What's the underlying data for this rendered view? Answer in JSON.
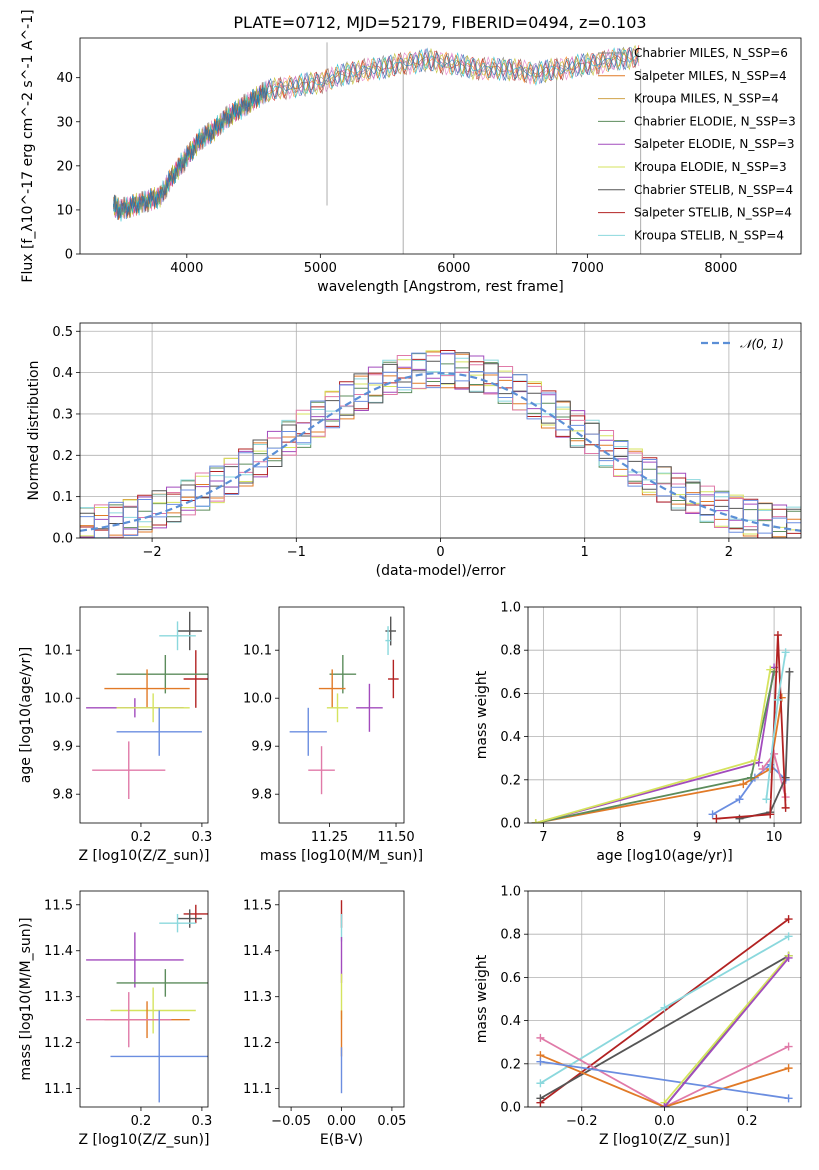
{
  "title": "PLATE=0712, MJD=52179, FIBERID=0494, z=0.103",
  "colors": [
    "#7f7f7f",
    "#ff7f0e",
    "#d62728",
    "#9467bd",
    "#e377c2",
    "#bcbd22",
    "#17becf",
    "#8c564b",
    "#1f77b4"
  ],
  "chart_data": [
    {
      "id": "spectrum",
      "type": "line",
      "xlabel": "wavelength [Angstrom, rest frame]",
      "ylabel": "Flux [f_λ10^-17 erg cm^-2 s^-1 A^-1]",
      "xlim": [
        3200,
        8600
      ],
      "ylim": [
        0,
        49
      ],
      "xticks": [
        4000,
        5000,
        6000,
        7000,
        8000
      ],
      "yticks": [
        0,
        10,
        20,
        30,
        40
      ],
      "x": [
        3450,
        3500,
        3600,
        3700,
        3800,
        3900,
        4000,
        4100,
        4200,
        4300,
        4400,
        4500,
        4600,
        4800,
        5000,
        5200,
        5400,
        5600,
        5800,
        6000,
        6200,
        6400,
        6600,
        6800,
        7000,
        7200,
        7400
      ],
      "y": [
        11,
        10,
        11,
        12,
        13,
        18,
        22,
        26,
        28,
        31,
        33,
        35,
        37,
        38,
        39,
        41,
        42,
        43,
        44,
        43,
        42,
        42,
        41,
        42,
        43,
        44,
        45
      ],
      "legend": [
        "Chabrier MILES, N_SSP=6",
        "Salpeter MILES, N_SSP=4",
        "Kroupa MILES, N_SSP=4",
        "Chabrier ELODIE, N_SSP=3",
        "Salpeter ELODIE, N_SSP=3",
        "Kroupa ELODIE, N_SSP=3",
        "Chabrier STELIB, N_SSP=4",
        "Salpeter STELIB, N_SSP=4",
        "Kroupa STELIB, N_SSP=4"
      ],
      "legend_loc": "top-right",
      "grid": false
    },
    {
      "id": "residuals",
      "type": "histogram",
      "xlabel": "(data-model)/error",
      "ylabel": "Normed distribution",
      "xlim": [
        -2.5,
        2.5
      ],
      "ylim": [
        0,
        0.52
      ],
      "xticks": [
        -2,
        -1,
        0,
        1,
        2
      ],
      "yticks": [
        0.0,
        0.1,
        0.2,
        0.3,
        0.4,
        0.5
      ],
      "bin_width": 0.1,
      "reference_label": "𝒩(0, 1)",
      "legend_loc": "top-right",
      "grid": true
    },
    {
      "id": "age_vs_Z",
      "type": "errorbar",
      "xlabel": "Z [log10(Z/Z_sun)]",
      "ylabel": "age [log10(age/yr)]",
      "xlim": [
        0.1,
        0.31
      ],
      "ylim": [
        9.74,
        10.19
      ],
      "xticks": [
        0.2,
        0.3
      ],
      "yticks": [
        9.8,
        9.9,
        10.0,
        10.1
      ],
      "points": [
        {
          "x": 0.28,
          "y": 10.14,
          "xerr": 0.02,
          "yerr": 0.04,
          "c": "#555555"
        },
        {
          "x": 0.26,
          "y": 10.13,
          "xerr": 0.03,
          "yerr": 0.03,
          "c": "#8bd8dd"
        },
        {
          "x": 0.29,
          "y": 10.04,
          "xerr": 0.02,
          "yerr": 0.06,
          "c": "#b22222"
        },
        {
          "x": 0.24,
          "y": 10.05,
          "xerr": 0.08,
          "yerr": 0.04,
          "c": "#5c8c5c"
        },
        {
          "x": 0.21,
          "y": 10.02,
          "xerr": 0.07,
          "yerr": 0.04,
          "c": "#e17a27"
        },
        {
          "x": 0.19,
          "y": 9.98,
          "xerr": 0.08,
          "yerr": 0.02,
          "c": "#a24bbd"
        },
        {
          "x": 0.22,
          "y": 9.98,
          "xerr": 0.06,
          "yerr": 0.03,
          "c": "#d5e35e"
        },
        {
          "x": 0.23,
          "y": 9.93,
          "xerr": 0.07,
          "yerr": 0.05,
          "c": "#6b8ee0"
        },
        {
          "x": 0.18,
          "y": 9.85,
          "xerr": 0.06,
          "yerr": 0.06,
          "c": "#e07aa8"
        }
      ]
    },
    {
      "id": "age_vs_mass",
      "type": "errorbar",
      "xlabel": "mass [log10(M/M_sun)]",
      "ylabel": "",
      "xlim": [
        11.06,
        11.53
      ],
      "ylim": [
        9.74,
        10.19
      ],
      "xticks": [
        11.25,
        11.5
      ],
      "yticks": [
        9.8,
        9.9,
        10.0,
        10.1
      ],
      "points": [
        {
          "x": 11.48,
          "y": 10.14,
          "xerr": 0.02,
          "yerr": 0.03,
          "c": "#555555"
        },
        {
          "x": 11.47,
          "y": 10.12,
          "xerr": 0.01,
          "yerr": 0.03,
          "c": "#8bd8dd"
        },
        {
          "x": 11.49,
          "y": 10.04,
          "xerr": 0.02,
          "yerr": 0.04,
          "c": "#b22222"
        },
        {
          "x": 11.3,
          "y": 10.05,
          "xerr": 0.05,
          "yerr": 0.04,
          "c": "#5c8c5c"
        },
        {
          "x": 11.26,
          "y": 10.02,
          "xerr": 0.05,
          "yerr": 0.04,
          "c": "#e17a27"
        },
        {
          "x": 11.4,
          "y": 9.98,
          "xerr": 0.05,
          "yerr": 0.05,
          "c": "#a24bbd"
        },
        {
          "x": 11.28,
          "y": 9.98,
          "xerr": 0.04,
          "yerr": 0.03,
          "c": "#d5e35e"
        },
        {
          "x": 11.17,
          "y": 9.93,
          "xerr": 0.07,
          "yerr": 0.05,
          "c": "#6b8ee0"
        },
        {
          "x": 11.22,
          "y": 9.85,
          "xerr": 0.05,
          "yerr": 0.05,
          "c": "#e07aa8"
        }
      ]
    },
    {
      "id": "weight_vs_age",
      "type": "line",
      "xlabel": "age [log10(age/yr)]",
      "ylabel": "mass weight",
      "xlim": [
        6.8,
        10.35
      ],
      "ylim": [
        0,
        1.0
      ],
      "xticks": [
        7,
        8,
        9,
        10
      ],
      "yticks": [
        0.0,
        0.2,
        0.4,
        0.6,
        0.8,
        1.0
      ],
      "grid": true,
      "series": [
        {
          "c": "#6b8ee0",
          "x": [
            9.2,
            9.55,
            9.75,
            9.95,
            10.15
          ],
          "y": [
            0.04,
            0.11,
            0.21,
            0.27,
            0.2
          ]
        },
        {
          "c": "#e17a27",
          "x": [
            6.9,
            9.6,
            9.95,
            10.1
          ],
          "y": [
            0.0,
            0.18,
            0.25,
            0.58
          ]
        },
        {
          "c": "#a24bbd",
          "x": [
            6.9,
            9.8,
            10.0
          ],
          "y": [
            0.0,
            0.28,
            0.72
          ]
        },
        {
          "c": "#5c8c5c",
          "x": [
            6.9,
            9.7,
            10.0
          ],
          "y": [
            0.0,
            0.21,
            0.7
          ]
        },
        {
          "c": "#d5e35e",
          "x": [
            6.9,
            9.75,
            9.95
          ],
          "y": [
            0.0,
            0.29,
            0.71
          ]
        },
        {
          "c": "#e07aa8",
          "x": [
            9.85,
            10.0,
            10.15
          ],
          "y": [
            0.25,
            0.32,
            0.12
          ]
        },
        {
          "c": "#555555",
          "x": [
            9.55,
            9.95,
            10.15,
            10.2
          ],
          "y": [
            0.02,
            0.05,
            0.21,
            0.7
          ]
        },
        {
          "c": "#b22222",
          "x": [
            9.25,
            9.95,
            10.05,
            10.15
          ],
          "y": [
            0.02,
            0.04,
            0.87,
            0.07
          ]
        },
        {
          "c": "#8bd8dd",
          "x": [
            9.9,
            10.05,
            10.15
          ],
          "y": [
            0.11,
            0.57,
            0.79
          ]
        }
      ]
    },
    {
      "id": "mass_vs_Z",
      "type": "errorbar",
      "xlabel": "Z [log10(Z/Z_sun)]",
      "ylabel": "mass [log10(M/M_sun)]",
      "xlim": [
        0.1,
        0.31
      ],
      "ylim": [
        11.06,
        11.53
      ],
      "xticks": [
        0.2,
        0.3
      ],
      "yticks": [
        11.1,
        11.2,
        11.3,
        11.4,
        11.5
      ],
      "points": [
        {
          "x": 0.29,
          "y": 11.48,
          "xerr": 0.02,
          "yerr": 0.02,
          "c": "#b22222"
        },
        {
          "x": 0.28,
          "y": 11.47,
          "xerr": 0.02,
          "yerr": 0.02,
          "c": "#555555"
        },
        {
          "x": 0.26,
          "y": 11.46,
          "xerr": 0.03,
          "yerr": 0.02,
          "c": "#8bd8dd"
        },
        {
          "x": 0.19,
          "y": 11.38,
          "xerr": 0.08,
          "yerr": 0.06,
          "c": "#a24bbd"
        },
        {
          "x": 0.24,
          "y": 11.33,
          "xerr": 0.08,
          "yerr": 0.03,
          "c": "#5c8c5c"
        },
        {
          "x": 0.22,
          "y": 11.27,
          "xerr": 0.07,
          "yerr": 0.05,
          "c": "#d5e35e"
        },
        {
          "x": 0.21,
          "y": 11.25,
          "xerr": 0.07,
          "yerr": 0.04,
          "c": "#e17a27"
        },
        {
          "x": 0.18,
          "y": 11.25,
          "xerr": 0.07,
          "yerr": 0.06,
          "c": "#e07aa8"
        },
        {
          "x": 0.23,
          "y": 11.17,
          "xerr": 0.08,
          "yerr": 0.1,
          "c": "#6b8ee0"
        }
      ]
    },
    {
      "id": "mass_vs_EBV",
      "type": "errorbar",
      "xlabel": "E(B-V)",
      "ylabel": "",
      "xlim": [
        -0.062,
        0.062
      ],
      "ylim": [
        11.06,
        11.53
      ],
      "xticks": [
        -0.05,
        0.0,
        0.05
      ],
      "yticks": [
        11.1,
        11.2,
        11.3,
        11.4,
        11.5
      ],
      "points": [
        {
          "x": 0.0,
          "y": 11.48,
          "xerr": 0.0,
          "yerr": 0.03,
          "c": "#b22222"
        },
        {
          "x": 0.0,
          "y": 11.45,
          "xerr": 0.0,
          "yerr": 0.03,
          "c": "#8bd8dd"
        },
        {
          "x": 0.0,
          "y": 11.38,
          "xerr": 0.0,
          "yerr": 0.05,
          "c": "#a24bbd"
        },
        {
          "x": 0.0,
          "y": 11.3,
          "xerr": 0.0,
          "yerr": 0.05,
          "c": "#d5e35e"
        },
        {
          "x": 0.0,
          "y": 11.22,
          "xerr": 0.0,
          "yerr": 0.05,
          "c": "#e17a27"
        },
        {
          "x": 0.0,
          "y": 11.14,
          "xerr": 0.0,
          "yerr": 0.05,
          "c": "#6b8ee0"
        }
      ]
    },
    {
      "id": "weight_vs_Z",
      "type": "line",
      "xlabel": "Z [log10(Z/Z_sun)]",
      "ylabel": "mass weight",
      "xlim": [
        -0.33,
        0.33
      ],
      "ylim": [
        0,
        1.0
      ],
      "xticks": [
        -0.2,
        0.0,
        0.2
      ],
      "yticks": [
        0.0,
        0.2,
        0.4,
        0.6,
        0.8,
        1.0
      ],
      "grid": true,
      "series": [
        {
          "c": "#b22222",
          "x": [
            -0.3,
            0.3
          ],
          "y": [
            0.02,
            0.87
          ]
        },
        {
          "c": "#8bd8dd",
          "x": [
            -0.3,
            0.0,
            0.3
          ],
          "y": [
            0.11,
            0.46,
            0.79
          ]
        },
        {
          "c": "#555555",
          "x": [
            -0.3,
            0.3
          ],
          "y": [
            0.04,
            0.7
          ]
        },
        {
          "c": "#e07aa8",
          "x": [
            -0.3,
            0.0,
            0.3
          ],
          "y": [
            0.32,
            0.0,
            0.28
          ]
        },
        {
          "c": "#e17a27",
          "x": [
            -0.3,
            0.0,
            0.3
          ],
          "y": [
            0.24,
            0.0,
            0.18
          ]
        },
        {
          "c": "#6b8ee0",
          "x": [
            -0.3,
            0.3
          ],
          "y": [
            0.21,
            0.04
          ]
        },
        {
          "c": "#5c8c5c",
          "x": [
            0.0,
            0.3
          ],
          "y": [
            0.0,
            0.7
          ]
        },
        {
          "c": "#d5e35e",
          "x": [
            0.0,
            0.3
          ],
          "y": [
            0.02,
            0.7
          ]
        },
        {
          "c": "#a24bbd",
          "x": [
            0.0,
            0.3
          ],
          "y": [
            0.0,
            0.69
          ]
        }
      ]
    }
  ]
}
